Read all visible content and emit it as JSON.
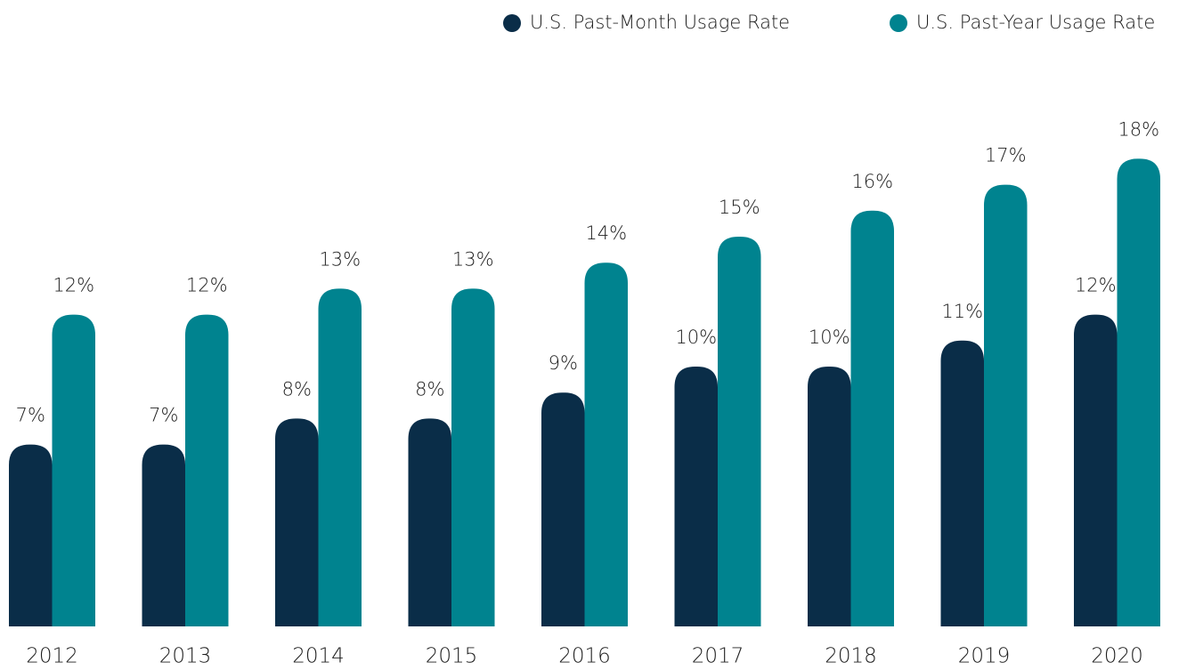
{
  "chart_data": {
    "type": "bar",
    "categories": [
      "2012",
      "2013",
      "2014",
      "2015",
      "2016",
      "2017",
      "2018",
      "2019",
      "2020"
    ],
    "series": [
      {
        "name": "U.S. Past-Month Usage Rate",
        "color": "#0a2d48",
        "values": [
          7,
          7,
          8,
          8,
          9,
          10,
          10,
          11,
          12
        ],
        "value_labels": [
          "7%",
          "7%",
          "8%",
          "8%",
          "9%",
          "10%",
          "10%",
          "11%",
          "12%"
        ]
      },
      {
        "name": "U.S. Past-Year Usage Rate",
        "color": "#00838f",
        "values": [
          12,
          12,
          13,
          13,
          14,
          15,
          16,
          17,
          18
        ],
        "value_labels": [
          "12%",
          "12%",
          "13%",
          "13%",
          "14%",
          "15%",
          "16%",
          "17%",
          "18%"
        ]
      }
    ]
  }
}
